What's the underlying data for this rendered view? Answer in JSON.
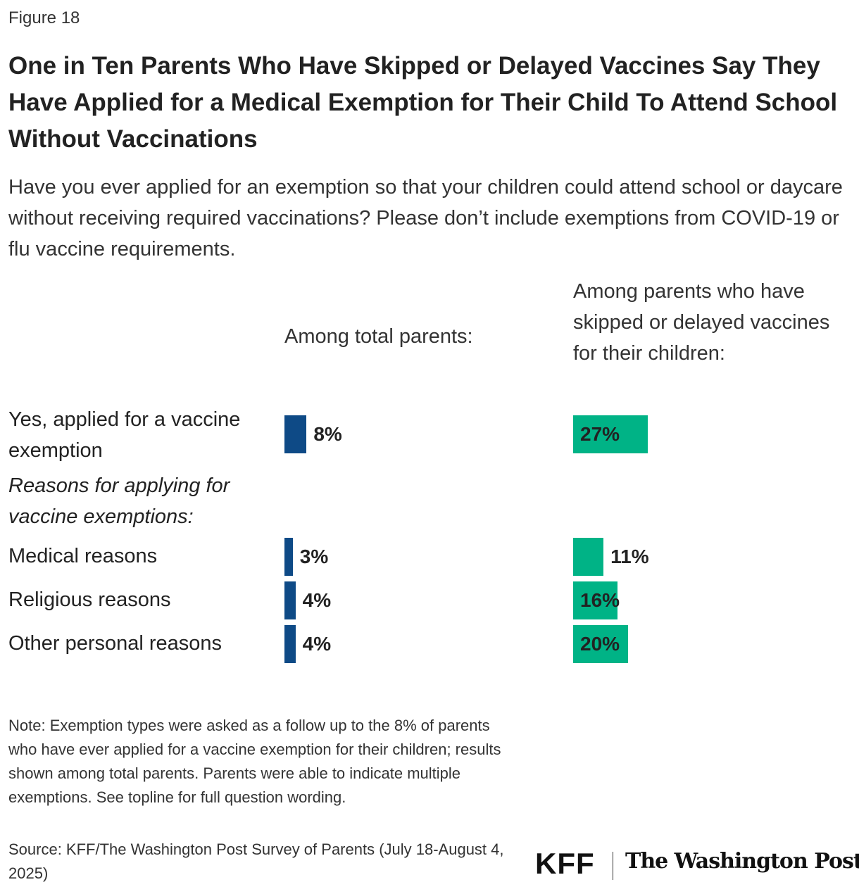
{
  "chart_data": {
    "type": "bar",
    "figure_label": "Figure 18",
    "title": "One in Ten Parents Who Have Skipped or Delayed Vaccines Say They Have Applied for a Medical Exemption for Their Child To Attend School Without Vaccinations",
    "subtitle": "Have you ever applied for an exemption so that your children could attend school or daycare without receiving required vaccinations? Please don’t include exemptions from COVID-19 or flu vaccine requirements.",
    "categories": [
      "Yes, applied for a vaccine exemption",
      "Medical reasons",
      "Religious reasons",
      "Other personal reasons"
    ],
    "group_label": "Reasons for applying for vaccine exemptions:",
    "series": [
      {
        "name": "Among total parents:",
        "color": "#0e4a86",
        "values": [
          8,
          3,
          4,
          4
        ],
        "value_labels": [
          "8%",
          "3%",
          "4%",
          "4%"
        ]
      },
      {
        "name": "Among parents who have skipped or delayed vaccines for their children:",
        "color": "#00b386",
        "values": [
          27,
          11,
          16,
          20
        ],
        "value_labels": [
          "27%",
          "11%",
          "16%",
          "20%"
        ]
      }
    ],
    "note": "Note: Exemption types were asked as a follow up to the 8% of parents who have ever applied for a vaccine exemption for their children; results shown among total parents. Parents were able to indicate multiple exemptions. See topline for full question wording.",
    "source": "Source: KFF/The Washington Post Survey of Parents (July 18-August 4, 2025)",
    "logos": [
      "KFF",
      "The Washington Post"
    ]
  }
}
